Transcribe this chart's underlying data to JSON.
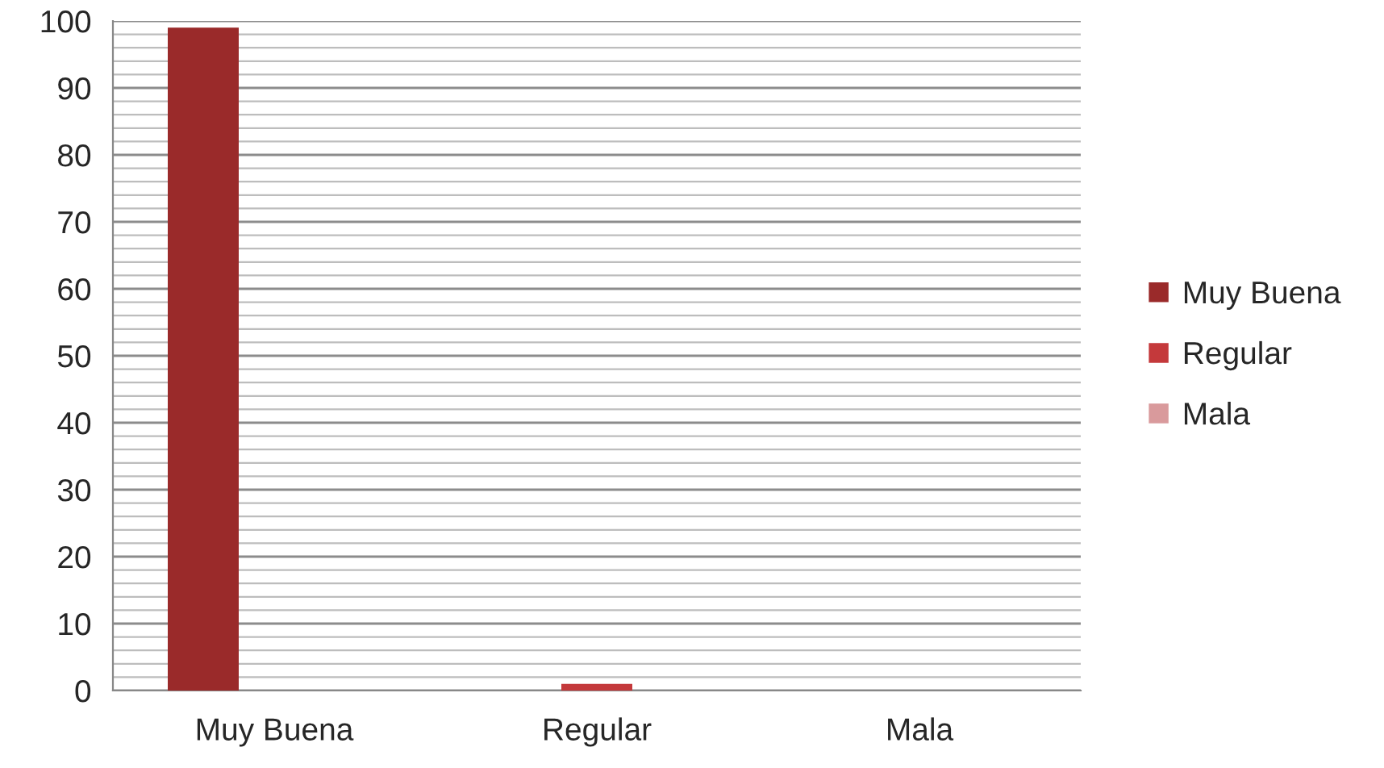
{
  "chart_data": {
    "type": "bar",
    "categories": [
      "Muy Buena",
      "Regular",
      "Mala"
    ],
    "series": [
      {
        "name": "Muy Buena",
        "color": "#9a2a2a",
        "values": [
          99,
          null,
          null
        ]
      },
      {
        "name": "Regular",
        "color": "#c4393b",
        "values": [
          null,
          1,
          null
        ]
      },
      {
        "name": "Mala",
        "color": "#d99a9c",
        "values": [
          null,
          null,
          null
        ]
      }
    ],
    "ylim": [
      0,
      100
    ],
    "yticks": [
      0,
      10,
      20,
      30,
      40,
      50,
      60,
      70,
      80,
      90,
      100
    ],
    "grid": "y",
    "legend": "right"
  }
}
